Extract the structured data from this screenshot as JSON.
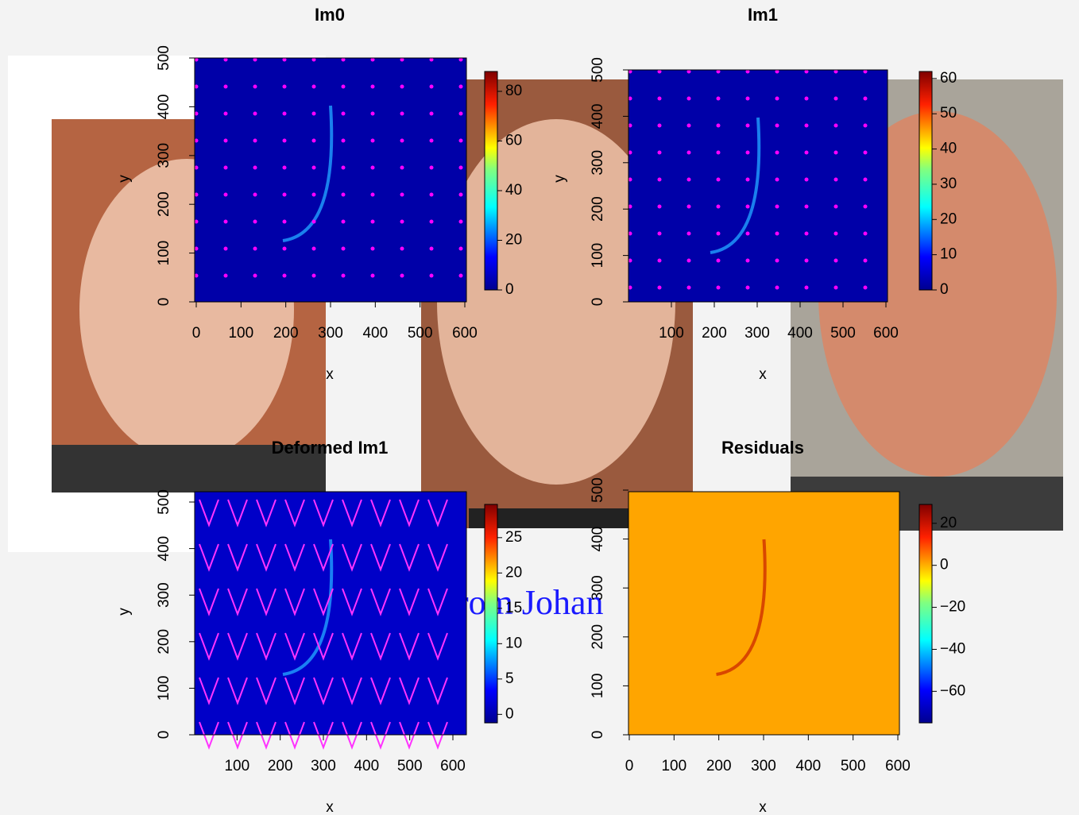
{
  "panels": [
    {
      "title": "Im0",
      "xlabel": "x",
      "ylabel": "y",
      "xlim": [
        0,
        600
      ],
      "ylim": [
        0,
        500
      ],
      "xticks": [
        0,
        100,
        200,
        300,
        400,
        500,
        600
      ],
      "yticks": [
        0,
        100,
        200,
        300,
        400,
        500
      ],
      "clim": [
        0,
        88
      ],
      "cticks": [
        0,
        20,
        40,
        60,
        80
      ]
    },
    {
      "title": "Im1",
      "xlabel": "x",
      "ylabel": "y",
      "xlim": [
        0,
        600
      ],
      "ylim": [
        0,
        500
      ],
      "xticks": [
        100,
        200,
        300,
        400,
        500,
        600
      ],
      "yticks": [
        0,
        100,
        200,
        300,
        400,
        500
      ],
      "clim": [
        0,
        62
      ],
      "cticks": [
        0,
        10,
        20,
        30,
        40,
        50,
        60
      ]
    },
    {
      "title": "Deformed Im1",
      "xlabel": "x",
      "ylabel": "y",
      "xlim": [
        0,
        600
      ],
      "ylim": [
        0,
        500
      ],
      "xticks": [
        100,
        200,
        300,
        400,
        500,
        600
      ],
      "yticks": [
        0,
        100,
        200,
        300,
        400,
        500
      ],
      "clim": [
        -1.2,
        29.7
      ],
      "cticks": [
        0,
        5,
        10,
        15,
        20,
        25
      ]
    },
    {
      "title": "Residuals",
      "xlabel": "x",
      "xlim": [
        0,
        600
      ],
      "ylim": [
        0,
        500
      ],
      "xticks": [
        0,
        100,
        200,
        300,
        400,
        500,
        600
      ],
      "yticks": [
        0,
        100,
        200,
        300,
        400,
        500
      ],
      "clim": [
        -75,
        29
      ],
      "cticks": [
        {
          "value": -60,
          "label": "−60"
        },
        {
          "value": -40,
          "label": "−40"
        },
        {
          "value": -20,
          "label": "−20"
        },
        0,
        20
      ]
    }
  ],
  "overlay_text": "rom Johan"
}
